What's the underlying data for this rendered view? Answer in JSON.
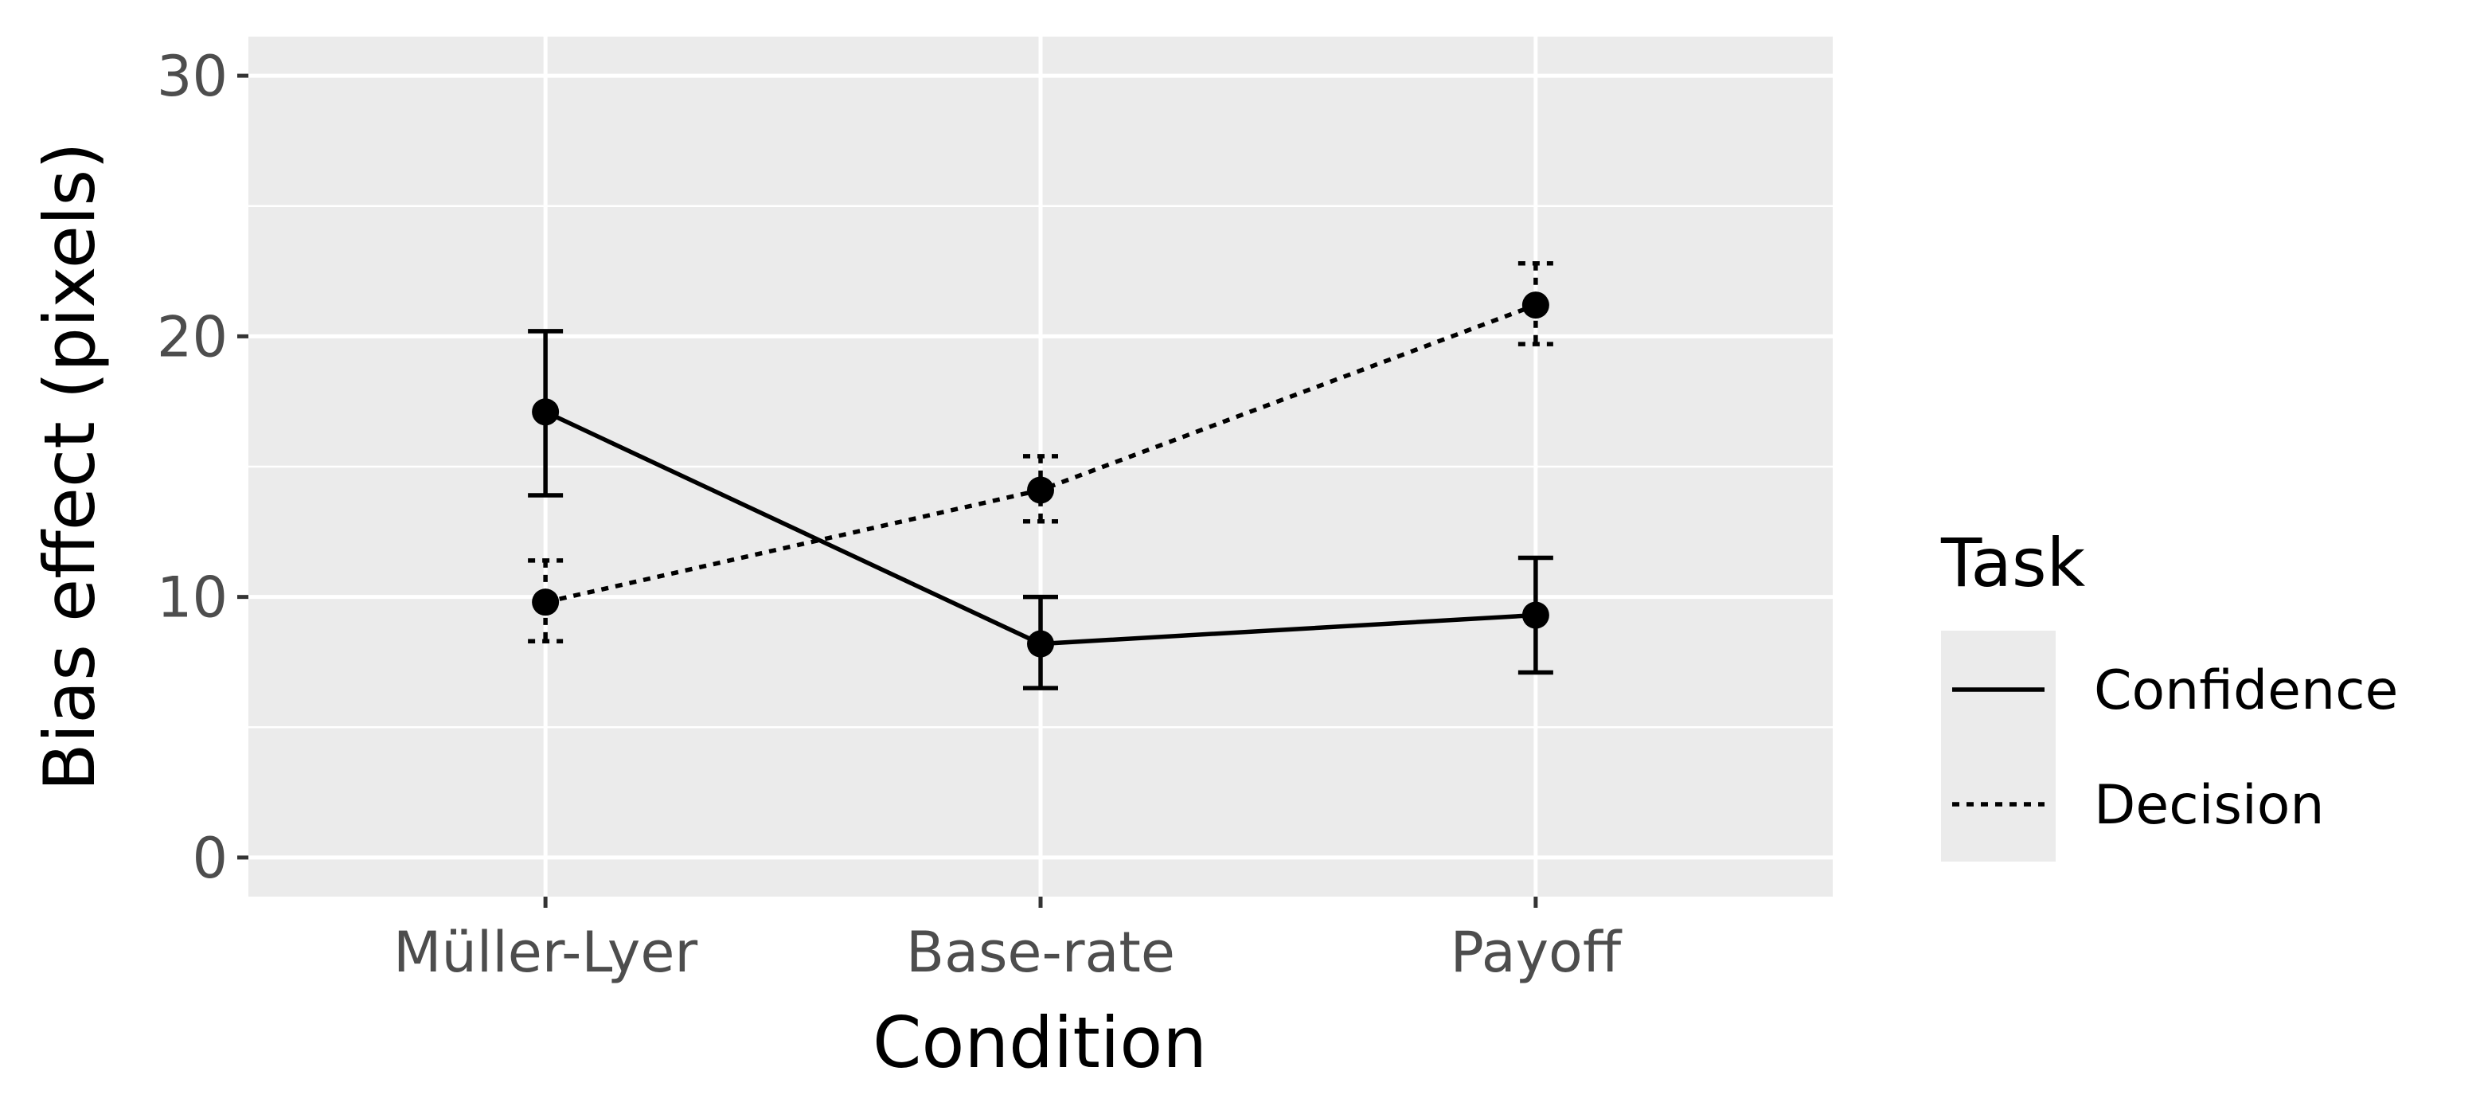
{
  "chart_data": {
    "type": "line",
    "xlabel": "Condition",
    "ylabel": "Bias effect (pixels)",
    "categories": [
      "Müller-Lyer",
      "Base-rate",
      "Payoff"
    ],
    "ylim": [
      -1.5,
      31.5
    ],
    "yticks": [
      0,
      10,
      20,
      30
    ],
    "grid": true,
    "legend": {
      "title": "Task",
      "position": "right"
    },
    "series": [
      {
        "name": "Confidence",
        "linetype": "solid",
        "values": [
          17.1,
          8.2,
          9.3
        ],
        "error_low": [
          13.9,
          6.5,
          7.1
        ],
        "error_high": [
          20.2,
          10.0,
          11.5
        ]
      },
      {
        "name": "Decision",
        "linetype": "dotted",
        "values": [
          9.8,
          14.1,
          21.2
        ],
        "error_low": [
          8.3,
          12.9,
          19.7
        ],
        "error_high": [
          11.4,
          15.4,
          22.8
        ]
      }
    ],
    "colors": {
      "panel": "#ebebeb",
      "grid": "#ffffff",
      "ink": "#000000",
      "tick_text": "#4d4d4d",
      "tick_mark": "#333333"
    }
  }
}
